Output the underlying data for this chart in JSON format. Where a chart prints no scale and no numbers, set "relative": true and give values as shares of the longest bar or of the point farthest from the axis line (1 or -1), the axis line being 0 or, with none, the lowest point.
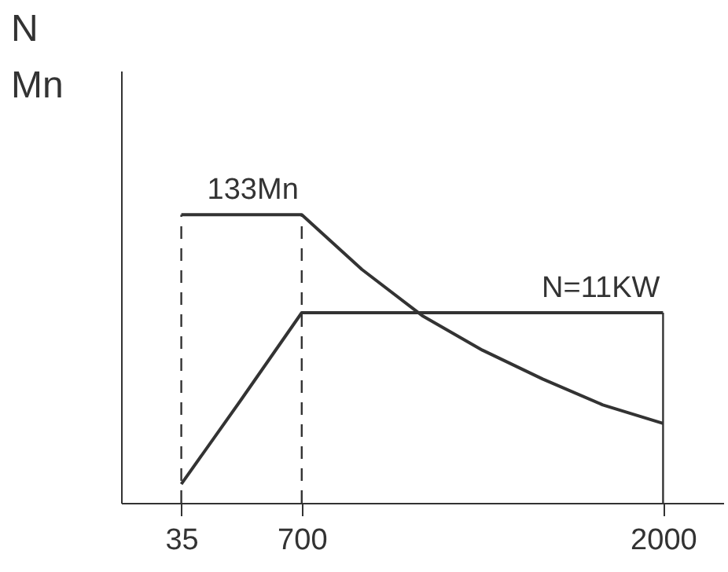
{
  "chart_data": {
    "type": "line",
    "relative": true,
    "ylabel": "N\nMn",
    "categories": [
      "35",
      null,
      "700",
      null,
      null,
      null,
      null,
      null,
      "2000"
    ],
    "series": [
      {
        "color": "#333333",
        "values": [
          1,
          1,
          1,
          0.81,
          0.65,
          0.53,
          0.43,
          0.34,
          0.276
        ]
      },
      {
        "color": "#333333",
        "values": [
          0.065,
          0.36,
          0.66,
          0.66,
          0.66,
          0.66,
          0.66,
          0.66,
          0.66
        ]
      }
    ],
    "ref_lines": [
      {
        "axis": "x",
        "value": "35",
        "line_style": "dashed",
        "color": "#333333"
      },
      {
        "axis": "x",
        "value": "700",
        "line_style": "dashed",
        "color": "#333333"
      },
      {
        "axis": "x",
        "value": "2000",
        "line_style": "solid",
        "color": "#333333"
      }
    ],
    "annotations": [
      {
        "text": "133Mn",
        "x": "700",
        "y": 1
      },
      {
        "text": "N=11KW",
        "x": "2000",
        "y": 0.66
      }
    ],
    "tick_labels": "x",
    "grid": false,
    "marker": "none",
    "line_style": "solid"
  }
}
